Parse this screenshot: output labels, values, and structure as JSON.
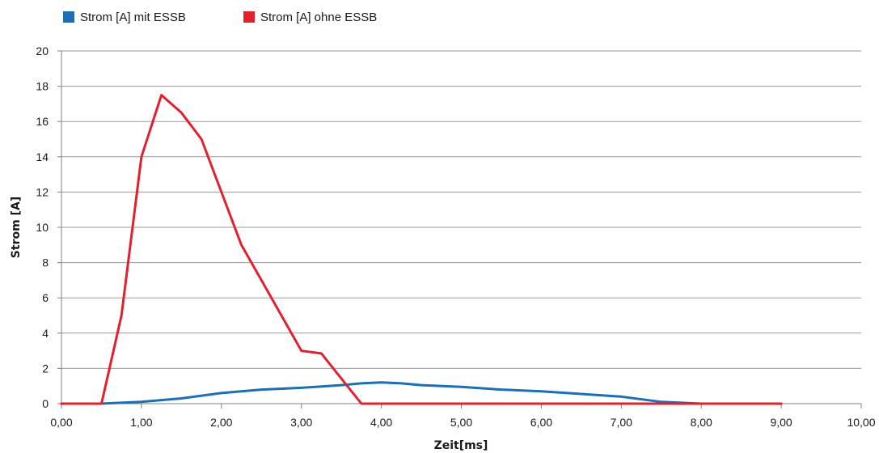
{
  "chart_data": {
    "type": "line",
    "xlabel": "Zeit[ms]",
    "ylabel": "Strom [A]",
    "xlim": [
      0,
      10
    ],
    "ylim": [
      0,
      20
    ],
    "x_ticks": [
      "0,00",
      "1,00",
      "2,00",
      "3,00",
      "4,00",
      "5,00",
      "6,00",
      "7,00",
      "8,00",
      "9,00",
      "10,00"
    ],
    "y_ticks": [
      "0",
      "2",
      "4",
      "6",
      "8",
      "10",
      "12",
      "14",
      "16",
      "18",
      "20"
    ],
    "grid": "horizontal",
    "legend_position": "top-left",
    "series": [
      {
        "name": "Strom [A] mit ESSB",
        "color": "#1a6fb5",
        "points": [
          [
            0,
            0
          ],
          [
            0.5,
            0
          ],
          [
            1.0,
            0.1
          ],
          [
            1.5,
            0.3
          ],
          [
            2.0,
            0.6
          ],
          [
            2.5,
            0.8
          ],
          [
            3.0,
            0.9
          ],
          [
            3.5,
            1.05
          ],
          [
            3.75,
            1.15
          ],
          [
            4.0,
            1.2
          ],
          [
            4.25,
            1.15
          ],
          [
            4.5,
            1.05
          ],
          [
            5.0,
            0.95
          ],
          [
            5.5,
            0.8
          ],
          [
            6.0,
            0.7
          ],
          [
            6.5,
            0.55
          ],
          [
            7.0,
            0.4
          ],
          [
            7.5,
            0.1
          ],
          [
            8.0,
            0
          ],
          [
            9.0,
            0
          ]
        ]
      },
      {
        "name": "Strom [A] ohne ESSB",
        "color": "#e3202e",
        "points": [
          [
            0,
            0
          ],
          [
            0.5,
            0
          ],
          [
            0.75,
            5
          ],
          [
            1.0,
            14
          ],
          [
            1.25,
            17.5
          ],
          [
            1.5,
            16.5
          ],
          [
            1.75,
            15
          ],
          [
            2.0,
            12
          ],
          [
            2.25,
            9
          ],
          [
            2.5,
            7
          ],
          [
            3.0,
            3
          ],
          [
            3.25,
            2.85
          ],
          [
            3.75,
            0
          ],
          [
            9.0,
            0
          ]
        ]
      }
    ]
  }
}
